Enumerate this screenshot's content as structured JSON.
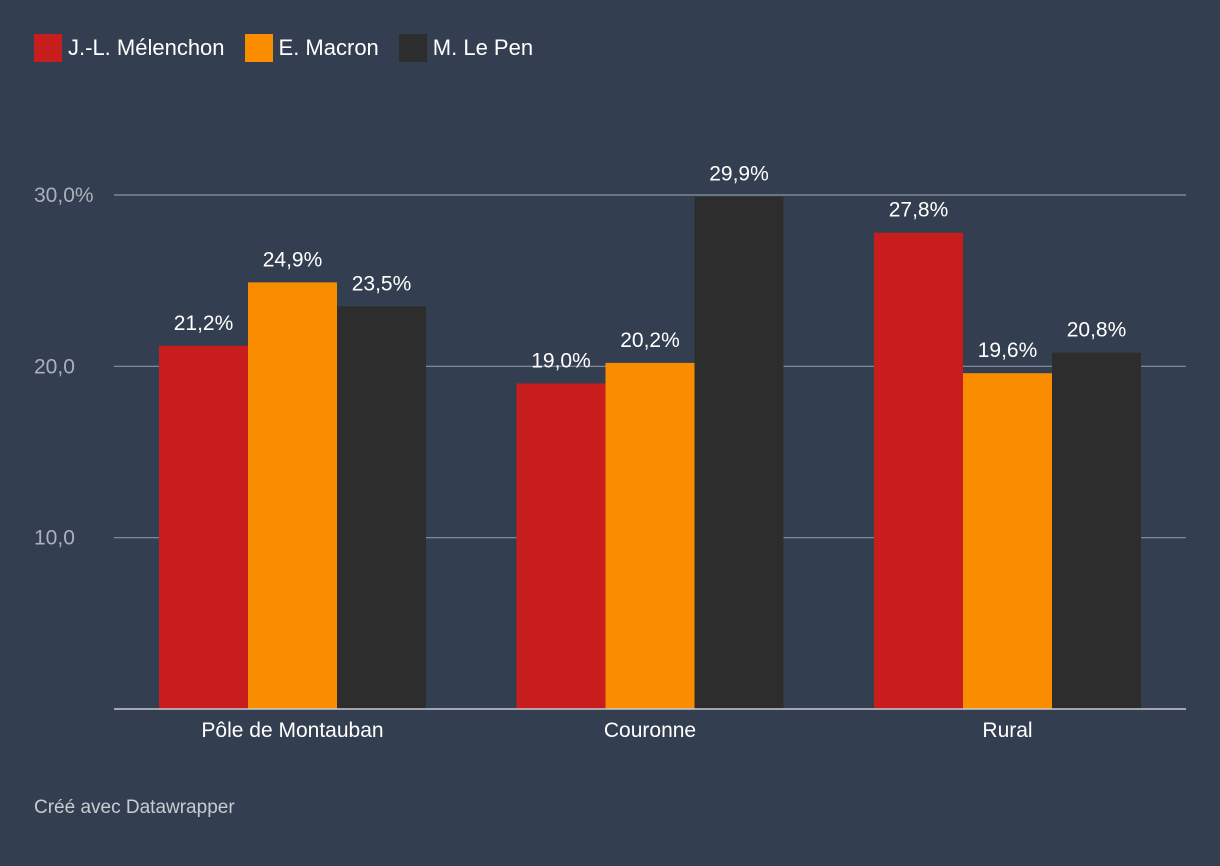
{
  "chart_data": {
    "type": "bar",
    "categories": [
      "Pôle de Montauban",
      "Couronne",
      "Rural"
    ],
    "series": [
      {
        "name": "J.-L. Mélenchon",
        "color": "#c71e1d",
        "values": [
          21.2,
          19.0,
          27.8
        ],
        "labels": [
          "21,2%",
          "19,0%",
          "27,8%"
        ]
      },
      {
        "name": "E. Macron",
        "color": "#fa8c00",
        "values": [
          24.9,
          20.2,
          19.6
        ],
        "labels": [
          "24,9%",
          "20,2%",
          "19,6%"
        ]
      },
      {
        "name": "M. Le Pen",
        "color": "#2d2d2d",
        "values": [
          23.5,
          29.9,
          20.8
        ],
        "labels": [
          "23,5%",
          "29,9%",
          "20,8%"
        ]
      }
    ],
    "yticks": [
      {
        "value": 30,
        "label": "30,0%"
      },
      {
        "value": 20,
        "label": "20,0"
      },
      {
        "value": 10,
        "label": "10,0"
      }
    ],
    "ylim": [
      0,
      30
    ],
    "grid": true,
    "legend_position": "top-left"
  },
  "credit": "Créé avec Datawrapper"
}
